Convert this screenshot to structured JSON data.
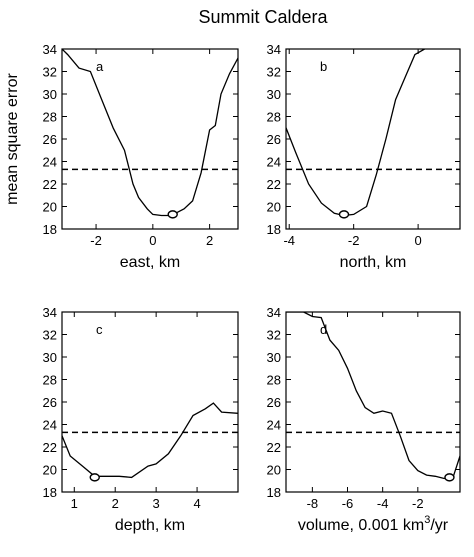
{
  "title": "Summit Caldera",
  "colors": {
    "line": "#000000",
    "reference": "#000000",
    "marker_fill": "#ffffff"
  },
  "chart_data": [
    {
      "type": "line",
      "panel": "a",
      "xlabel": "east, km",
      "ylabel": "mean square error",
      "xlim": [
        -3.2,
        3.0
      ],
      "ylim": [
        18,
        34
      ],
      "xticks": [
        -2,
        0,
        2
      ],
      "yticks": [
        18,
        20,
        22,
        24,
        26,
        28,
        30,
        32,
        34
      ],
      "grid": false,
      "x": [
        -3.2,
        -3.0,
        -2.6,
        -2.2,
        -1.8,
        -1.4,
        -1.0,
        -0.7,
        -0.5,
        -0.2,
        0.0,
        0.3,
        0.6,
        0.8,
        1.1,
        1.4,
        1.7,
        2.0,
        2.2,
        2.4,
        2.7,
        3.0
      ],
      "y": [
        34.0,
        33.5,
        32.3,
        32.0,
        29.5,
        27.0,
        25.0,
        22.0,
        20.8,
        19.8,
        19.3,
        19.2,
        19.2,
        19.4,
        19.8,
        20.5,
        23.0,
        26.8,
        27.2,
        30.0,
        31.8,
        33.2
      ],
      "reference_y": 23.3,
      "minimum": {
        "x": 0.7,
        "y": 19.3
      }
    },
    {
      "type": "line",
      "panel": "b",
      "xlabel": "north, km",
      "ylabel": "",
      "xlim": [
        -4.1,
        1.3
      ],
      "ylim": [
        18,
        34
      ],
      "xticks": [
        -4,
        -2,
        0
      ],
      "yticks": [
        18,
        20,
        22,
        24,
        26,
        28,
        30,
        32,
        34
      ],
      "grid": false,
      "x": [
        -4.1,
        -3.8,
        -3.4,
        -3.0,
        -2.6,
        -2.3,
        -2.0,
        -1.6,
        -1.3,
        -1.0,
        -0.7,
        -0.4,
        -0.1,
        0.2
      ],
      "y": [
        27.0,
        24.8,
        22.0,
        20.3,
        19.4,
        19.2,
        19.3,
        20.0,
        22.8,
        26.0,
        29.5,
        31.5,
        33.5,
        34.0
      ],
      "reference_y": 23.3,
      "minimum": {
        "x": -2.3,
        "y": 19.3
      }
    },
    {
      "type": "line",
      "panel": "c",
      "xlabel": "depth, km",
      "ylabel": "",
      "xlim": [
        0.7,
        5.0
      ],
      "ylim": [
        18,
        34
      ],
      "xticks": [
        1,
        2,
        3,
        4
      ],
      "yticks": [
        18,
        20,
        22,
        24,
        26,
        28,
        30,
        32,
        34
      ],
      "grid": false,
      "x": [
        0.7,
        0.9,
        1.2,
        1.5,
        1.8,
        2.1,
        2.4,
        2.8,
        3.0,
        3.3,
        3.6,
        3.9,
        4.2,
        4.4,
        4.6,
        5.0
      ],
      "y": [
        23.0,
        21.2,
        20.3,
        19.4,
        19.4,
        19.4,
        19.3,
        20.3,
        20.5,
        21.4,
        23.0,
        24.8,
        25.4,
        25.9,
        25.1,
        25.0
      ],
      "reference_y": 23.3,
      "minimum": {
        "x": 1.5,
        "y": 19.3
      }
    },
    {
      "type": "line",
      "panel": "d",
      "xlabel": "volume, 0.001 km",
      "xlabel_superscript": "3",
      "xlabel_suffix": "/yr",
      "ylabel": "",
      "xlim": [
        -9.5,
        0.4
      ],
      "ylim": [
        18,
        34
      ],
      "xticks": [
        -8,
        -6,
        -4,
        -2
      ],
      "yticks": [
        18,
        20,
        22,
        24,
        26,
        28,
        30,
        32,
        34
      ],
      "grid": false,
      "x": [
        -9.5,
        -8.5,
        -8.0,
        -7.5,
        -7.0,
        -6.5,
        -6.0,
        -5.5,
        -5.0,
        -4.5,
        -4.0,
        -3.5,
        -3.0,
        -2.5,
        -2.0,
        -1.5,
        -1.0,
        -0.5,
        0.0,
        0.4
      ],
      "y": [
        34.0,
        34.0,
        33.6,
        33.5,
        31.5,
        30.6,
        29.0,
        27.0,
        25.5,
        25.0,
        25.2,
        25.0,
        23.0,
        20.8,
        19.9,
        19.5,
        19.4,
        19.2,
        19.3,
        21.2
      ],
      "reference_y": 23.3,
      "minimum": {
        "x": -0.2,
        "y": 19.3
      }
    }
  ]
}
